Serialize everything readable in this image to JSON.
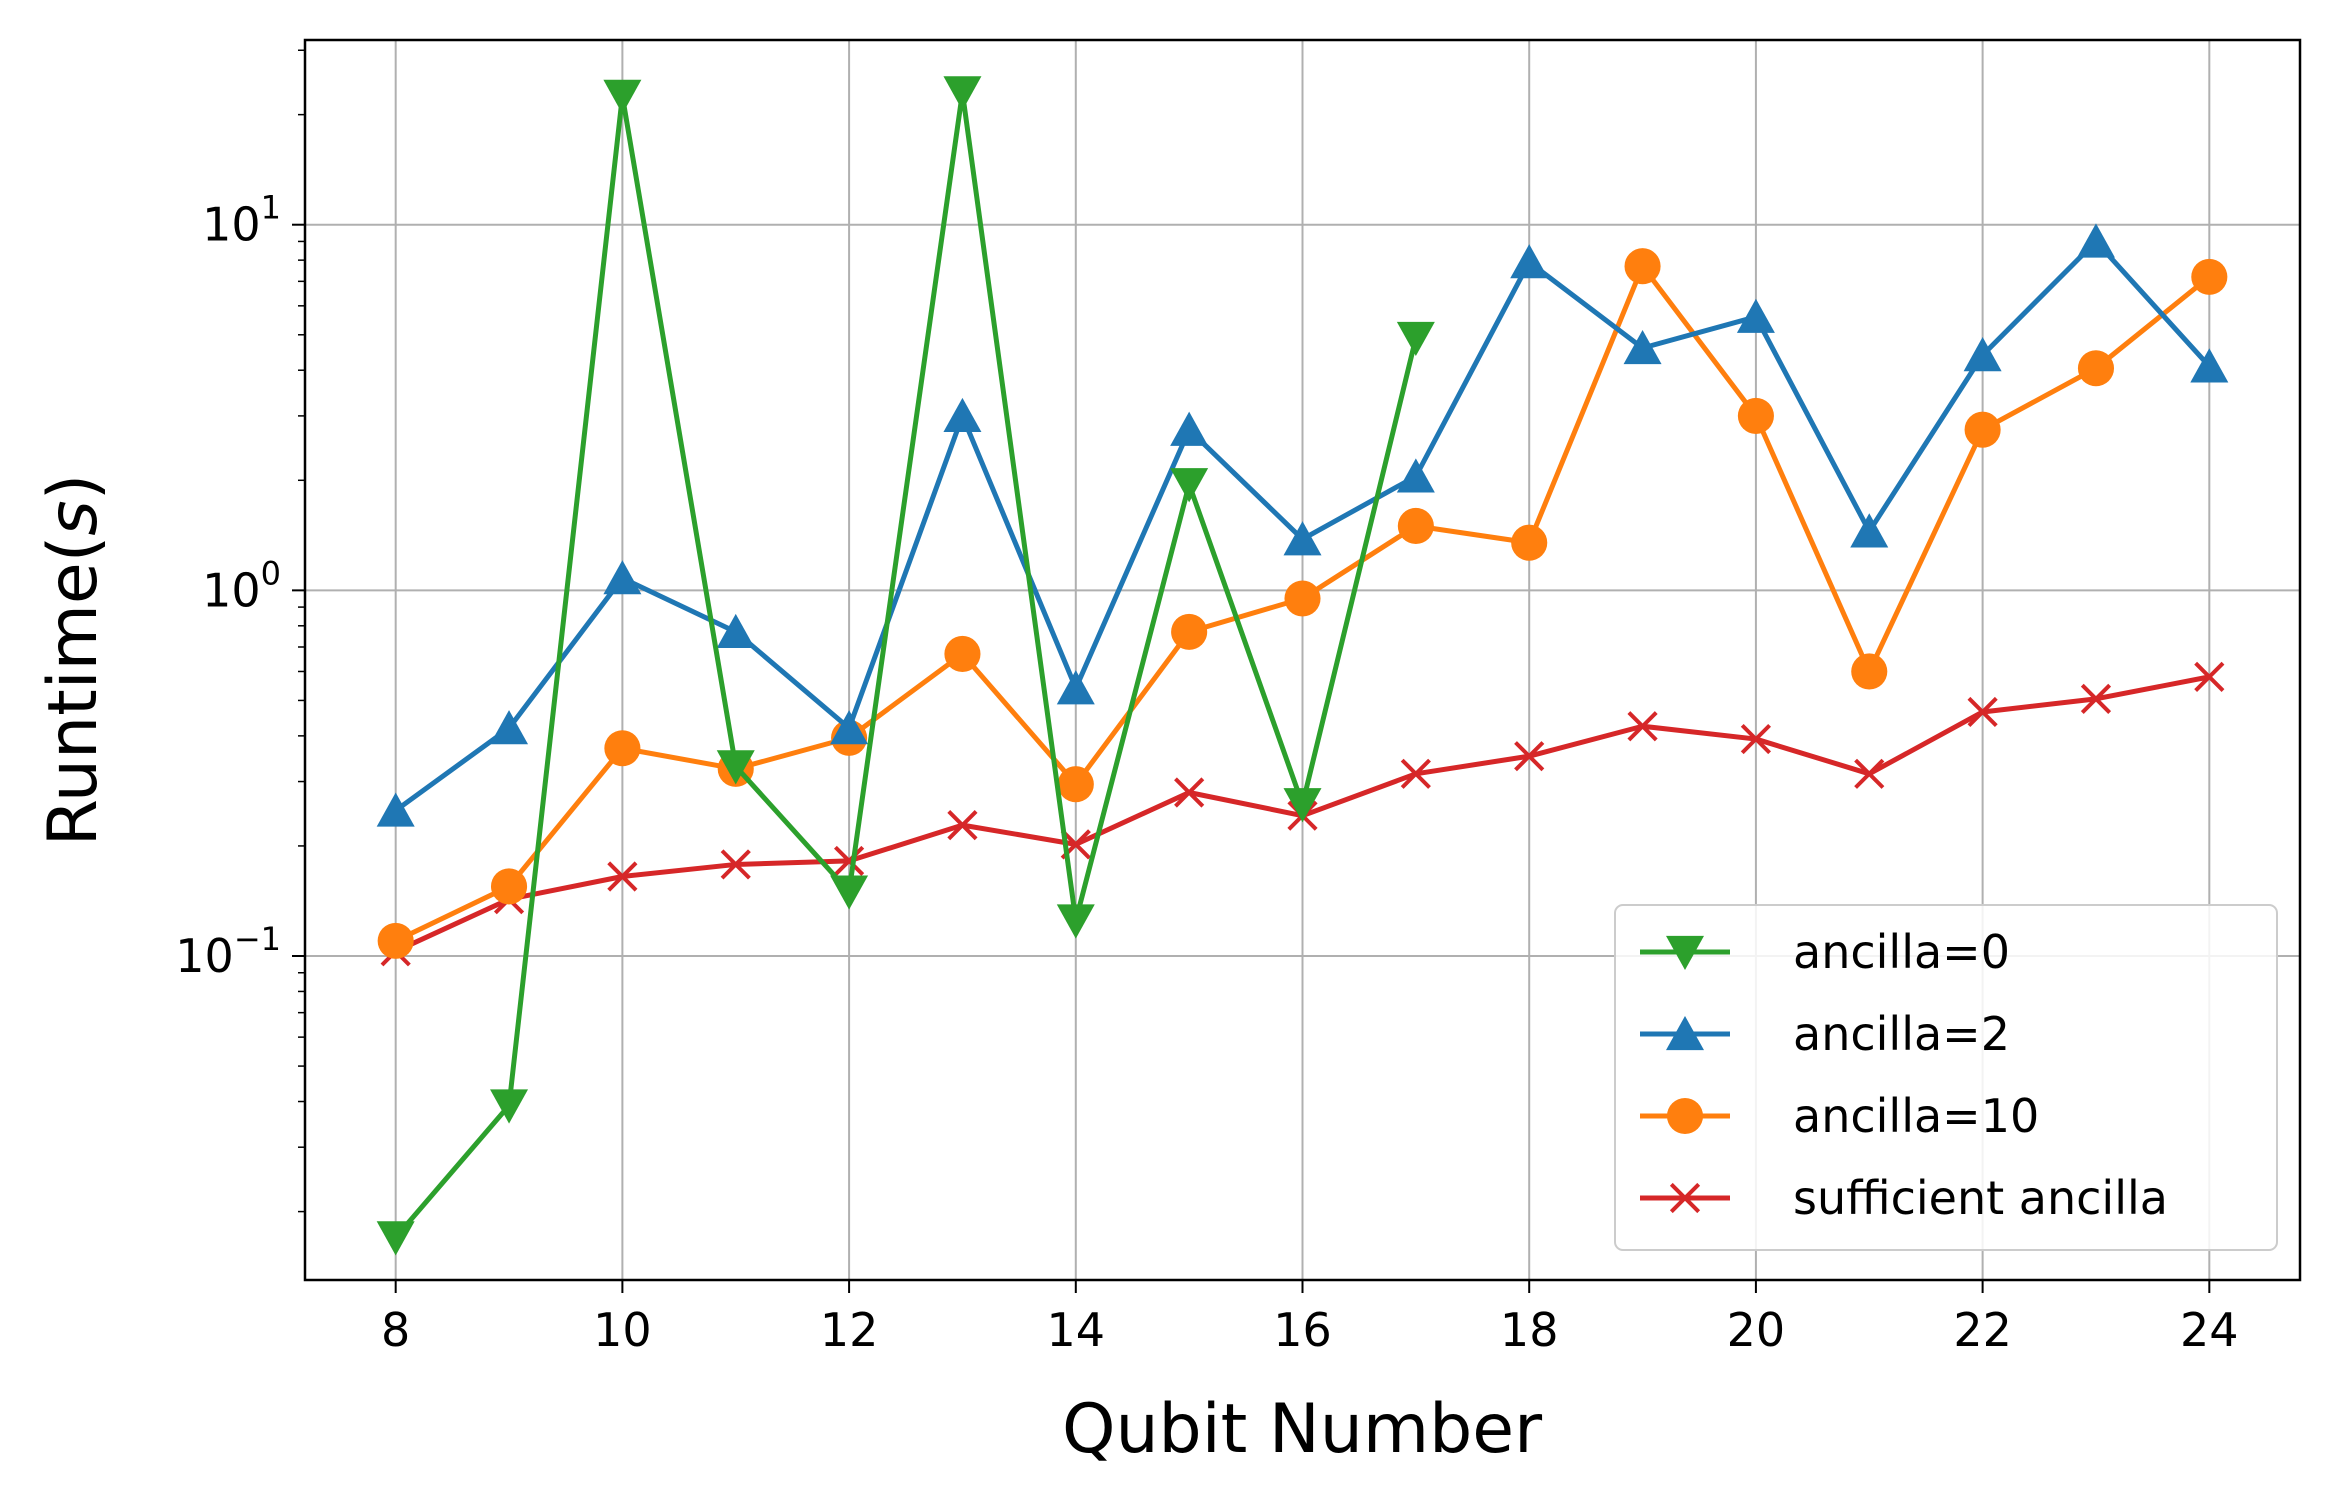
{
  "chart_data": {
    "type": "line",
    "title": "",
    "xlabel": "Qubit Number",
    "ylabel_prefix": "Runtime(",
    "ylabel_var": "s",
    "ylabel_suffix": ")",
    "yscale": "log",
    "xlim": [
      7.2,
      24.8
    ],
    "ylim": [
      0.013,
      32
    ],
    "xticks": [
      8,
      10,
      12,
      14,
      16,
      18,
      20,
      22,
      24
    ],
    "yticks": [
      {
        "value": 0.1,
        "base": "10",
        "exp": "−1"
      },
      {
        "value": 1,
        "base": "10",
        "exp": "0"
      },
      {
        "value": 10,
        "base": "10",
        "exp": "1"
      }
    ],
    "grid": true,
    "legend_position": "lower right",
    "series": [
      {
        "name": "ancilla=0",
        "color": "#2ca02c",
        "marker": "triangle-down",
        "x": [
          8,
          9,
          10,
          11,
          12,
          13,
          14,
          15,
          16,
          17
        ],
        "y": [
          0.017,
          0.039,
          22.5,
          0.33,
          0.15,
          23.0,
          0.125,
          1.95,
          0.26,
          4.9
        ]
      },
      {
        "name": "ancilla=2",
        "color": "#1f77b4",
        "marker": "triangle-up",
        "x": [
          8,
          9,
          10,
          11,
          12,
          13,
          14,
          15,
          16,
          17,
          18,
          19,
          20,
          21,
          22,
          23,
          24
        ],
        "y": [
          0.25,
          0.42,
          1.08,
          0.77,
          0.42,
          3.0,
          0.54,
          2.75,
          1.38,
          2.05,
          7.9,
          4.6,
          5.6,
          1.45,
          4.4,
          9.0,
          4.1
        ]
      },
      {
        "name": "ancilla=10",
        "color": "#ff7f0e",
        "marker": "circle",
        "x": [
          8,
          9,
          10,
          11,
          12,
          13,
          14,
          15,
          16,
          17,
          18,
          19,
          20,
          21,
          22,
          23,
          24
        ],
        "y": [
          0.11,
          0.155,
          0.37,
          0.325,
          0.395,
          0.67,
          0.295,
          0.77,
          0.95,
          1.5,
          1.35,
          7.7,
          3.0,
          0.6,
          2.75,
          4.05,
          7.2
        ]
      },
      {
        "name": "sufficient ancilla",
        "color": "#d62728",
        "marker": "x",
        "x": [
          8,
          9,
          10,
          11,
          12,
          13,
          14,
          15,
          16,
          17,
          18,
          19,
          20,
          21,
          22,
          23,
          24
        ],
        "y": [
          0.103,
          0.143,
          0.165,
          0.178,
          0.182,
          0.228,
          0.202,
          0.28,
          0.242,
          0.315,
          0.352,
          0.425,
          0.392,
          0.315,
          0.465,
          0.505,
          0.58
        ]
      }
    ]
  }
}
